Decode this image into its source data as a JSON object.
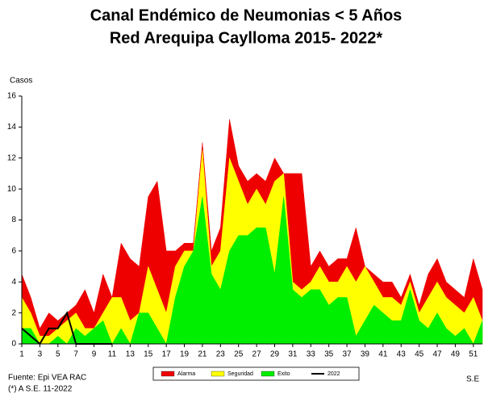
{
  "chart_data": {
    "type": "area",
    "title": "Canal Endémico de Neumonias < 5 Años",
    "subtitle": "Red Arequipa Caylloma 2015- 2022*",
    "y_label": "Casos",
    "x_label": "S.E",
    "notes": [
      "Fuente: Epi VEA RAC",
      "(*) A S.E.  11-2022"
    ],
    "x": [
      1,
      2,
      3,
      4,
      5,
      6,
      7,
      8,
      9,
      10,
      11,
      12,
      13,
      14,
      15,
      16,
      17,
      18,
      19,
      20,
      21,
      22,
      23,
      24,
      25,
      26,
      27,
      28,
      29,
      30,
      31,
      32,
      33,
      34,
      35,
      36,
      37,
      38,
      39,
      40,
      41,
      42,
      43,
      44,
      45,
      46,
      47,
      48,
      49,
      50,
      51,
      52
    ],
    "xlim": [
      1,
      52
    ],
    "xticks": [
      1,
      3,
      5,
      7,
      9,
      11,
      13,
      15,
      17,
      19,
      21,
      23,
      25,
      27,
      29,
      31,
      33,
      35,
      37,
      39,
      41,
      43,
      45,
      47,
      49,
      51
    ],
    "ylim": [
      0,
      16
    ],
    "yticks": [
      0,
      2,
      4,
      6,
      8,
      10,
      12,
      14,
      16
    ],
    "series": [
      {
        "name": "Alarma",
        "color": "#ee0000",
        "values": [
          4.5,
          3,
          1,
          2,
          1.5,
          2,
          2.5,
          3.5,
          2,
          4.5,
          3,
          6.5,
          5.5,
          5,
          9.5,
          10.5,
          6,
          6,
          6.5,
          6.5,
          13,
          6,
          7.5,
          14.5,
          11.5,
          10.5,
          11,
          10.5,
          12,
          11,
          11,
          11,
          5,
          6,
          5,
          5.5,
          5.5,
          7.5,
          5,
          4.5,
          4,
          4,
          3,
          4.5,
          2.5,
          4.5,
          5.5,
          4,
          3.5,
          3,
          5.5,
          3.5
        ]
      },
      {
        "name": "Seguridad",
        "color": "#ffff00",
        "values": [
          3,
          2,
          0.5,
          0.5,
          1,
          1.5,
          2,
          1,
          1,
          2,
          3,
          3,
          1.5,
          2,
          5,
          3.5,
          2,
          5,
          6,
          6,
          12.5,
          5,
          6,
          12,
          10.5,
          9,
          10,
          9,
          10.5,
          11,
          4,
          3.5,
          4,
          5,
          4,
          4,
          5,
          4,
          5,
          4,
          3,
          3,
          2.5,
          4,
          2,
          3,
          4,
          3,
          2.5,
          2,
          3,
          1.5
        ]
      },
      {
        "name": "Exito",
        "color": "#00ee00",
        "values": [
          1,
          1,
          0,
          0,
          0.5,
          0,
          1,
          0.5,
          1,
          1.5,
          0,
          1,
          0,
          2,
          2,
          1,
          0,
          3,
          5,
          6,
          9.5,
          4.5,
          3.5,
          6,
          7,
          7,
          7.5,
          7.5,
          4.5,
          9.5,
          3.5,
          3,
          3.5,
          3.5,
          2.5,
          3,
          3,
          0.5,
          1.5,
          2.5,
          2,
          1.5,
          1.5,
          3.5,
          1.5,
          1,
          2,
          1,
          0.5,
          1,
          0,
          1.5
        ]
      },
      {
        "name": "2022",
        "color": "#000000",
        "line": true,
        "values": [
          1,
          0.5,
          0,
          1,
          1,
          2,
          0,
          0,
          0,
          0,
          0,
          null,
          null,
          null,
          null,
          null,
          null,
          null,
          null,
          null,
          null,
          null,
          null,
          null,
          null,
          null,
          null,
          null,
          null,
          null,
          null,
          null,
          null,
          null,
          null,
          null,
          null,
          null,
          null,
          null,
          null,
          null,
          null,
          null,
          null,
          null,
          null,
          null,
          null,
          null,
          null,
          null
        ]
      }
    ]
  }
}
